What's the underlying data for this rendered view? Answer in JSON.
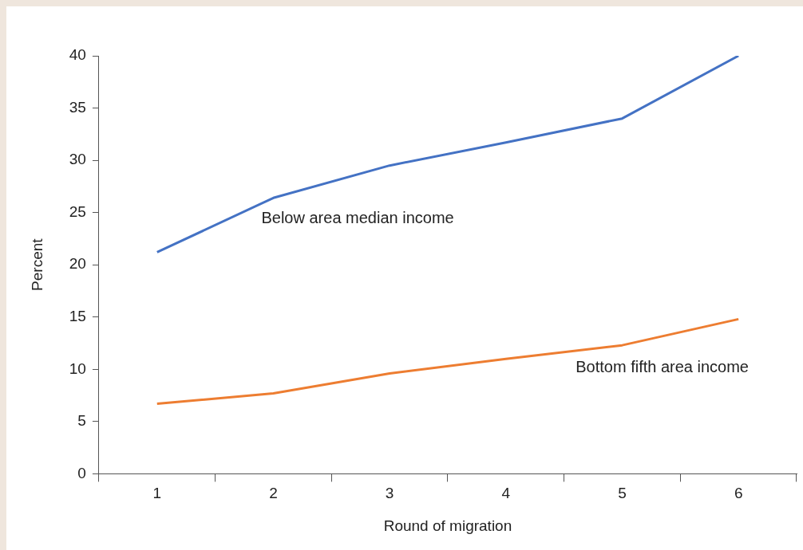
{
  "chart_data": {
    "type": "line",
    "xlabel": "Round of migration",
    "ylabel": "Percent",
    "categories": [
      "1",
      "2",
      "3",
      "4",
      "5",
      "6"
    ],
    "series": [
      {
        "name": "Below area median income",
        "color": "#4472c4",
        "values": [
          21.2,
          26.4,
          29.5,
          31.7,
          34.0,
          40.0
        ]
      },
      {
        "name": "Bottom fifth area income",
        "color": "#ed7d31",
        "values": [
          6.7,
          7.7,
          9.6,
          11.0,
          12.3,
          14.8
        ]
      }
    ],
    "ylim": [
      0,
      40
    ],
    "yticks": [
      0,
      5,
      10,
      15,
      20,
      25,
      30,
      35,
      40
    ],
    "grid": false,
    "legend": false,
    "marker": "none",
    "line_style": "solid"
  }
}
